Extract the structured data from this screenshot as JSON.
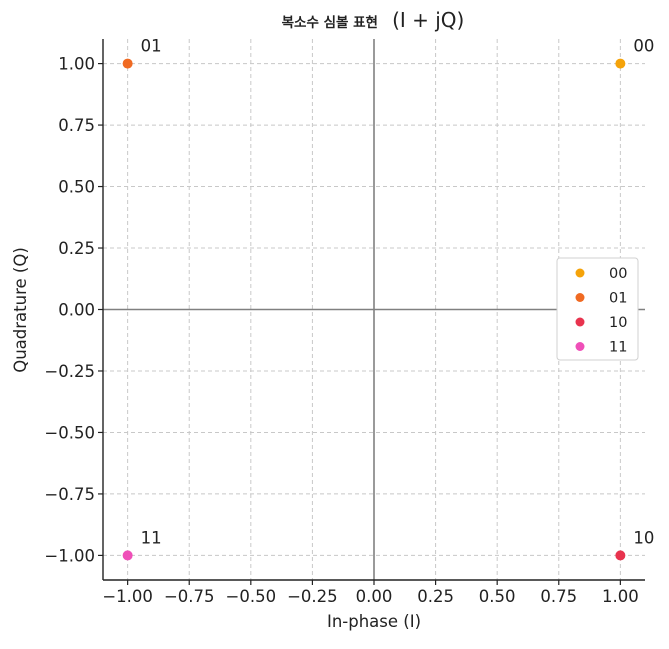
{
  "chart_data": {
    "type": "scatter",
    "title_ko": "복소수 심볼 표현",
    "title_rest": "(I + jQ)",
    "xlabel": "In-phase (I)",
    "ylabel": "Quadrature (Q)",
    "xlim": [
      -1.1,
      1.1
    ],
    "ylim": [
      -1.1,
      1.1
    ],
    "grid": true,
    "legend_position": "center-right",
    "x_ticks": [
      "−1.00",
      "−0.75",
      "−0.50",
      "−0.25",
      "0.00",
      "0.25",
      "0.50",
      "0.75",
      "1.00"
    ],
    "y_ticks": [
      "1.00",
      "0.75",
      "0.50",
      "0.25",
      "0.00",
      "−0.25",
      "−0.50",
      "−0.75",
      "−1.00"
    ],
    "x_tick_values": [
      -1.0,
      -0.75,
      -0.5,
      -0.25,
      0.0,
      0.25,
      0.5,
      0.75,
      1.0
    ],
    "y_tick_values": [
      1.0,
      0.75,
      0.5,
      0.25,
      0.0,
      -0.25,
      -0.5,
      -0.75,
      -1.0
    ],
    "series": [
      {
        "name": "00",
        "color": "#f5a30a",
        "x": 1,
        "y": 1,
        "label": "00"
      },
      {
        "name": "01",
        "color": "#f06a22",
        "x": -1,
        "y": 1,
        "label": "01"
      },
      {
        "name": "10",
        "color": "#e8334e",
        "x": 1,
        "y": -1,
        "label": "10"
      },
      {
        "name": "11",
        "color": "#ef4fb8",
        "x": -1,
        "y": -1,
        "label": "11"
      }
    ]
  }
}
